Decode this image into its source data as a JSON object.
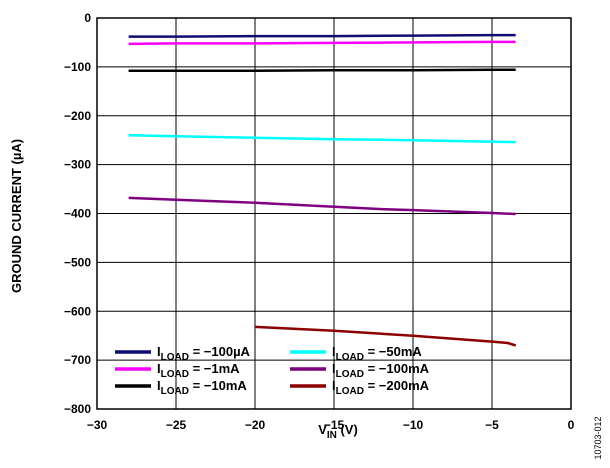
{
  "chart_data": {
    "type": "line",
    "xlabel": {
      "main": "V",
      "sub": "IN",
      "unit": " (V)"
    },
    "ylabel": "GROUND CURRENT (µA)",
    "xlim": [
      -30,
      0
    ],
    "ylim": [
      -800,
      0
    ],
    "xticks": [
      -30,
      -25,
      -20,
      -15,
      -10,
      -5,
      0
    ],
    "yticks": [
      0,
      -100,
      -200,
      -300,
      -400,
      -500,
      -600,
      -700,
      -800
    ],
    "grid": true,
    "legend_position": "bottom-left",
    "figure_id": "10703-012",
    "series": [
      {
        "name_main": "I",
        "name_sub": "LOAD",
        "name_rest": " = −100µA",
        "color": "#0d0d73",
        "x": [
          -28,
          -25,
          -20,
          -15,
          -10,
          -5,
          -3.5
        ],
        "y": [
          -38,
          -38,
          -37,
          -37,
          -36,
          -35,
          -35
        ]
      },
      {
        "name_main": "I",
        "name_sub": "LOAD",
        "name_rest": " = −1mA",
        "color": "#ff00ff",
        "x": [
          -28,
          -25,
          -20,
          -15,
          -10,
          -5,
          -3.5
        ],
        "y": [
          -53,
          -52,
          -52,
          -51,
          -50,
          -49,
          -49
        ]
      },
      {
        "name_main": "I",
        "name_sub": "LOAD",
        "name_rest": " = −10mA",
        "color": "#000000",
        "x": [
          -28,
          -25,
          -20,
          -15,
          -10,
          -5,
          -3.5
        ],
        "y": [
          -108,
          -108,
          -108,
          -107,
          -107,
          -106,
          -106
        ]
      },
      {
        "name_main": "I",
        "name_sub": "LOAD",
        "name_rest": " = −50mA",
        "color": "#00ffff",
        "x": [
          -28,
          -25,
          -20,
          -15,
          -10,
          -5,
          -3.5
        ],
        "y": [
          -240,
          -242,
          -245,
          -248,
          -250,
          -253,
          -254
        ]
      },
      {
        "name_main": "I",
        "name_sub": "LOAD",
        "name_rest": " = −100mA",
        "color": "#7f007f",
        "x": [
          -28,
          -25,
          -20,
          -15,
          -12,
          -10,
          -5,
          -3.5
        ],
        "y": [
          -368,
          -372,
          -378,
          -386,
          -391,
          -393,
          -399,
          -401
        ]
      },
      {
        "name_main": "I",
        "name_sub": "LOAD",
        "name_rest": " = −200mA",
        "color": "#8b0000",
        "x": [
          -20,
          -15,
          -10,
          -5,
          -4,
          -3.5
        ],
        "y": [
          -632,
          -640,
          -650,
          -662,
          -665,
          -670
        ]
      }
    ]
  }
}
